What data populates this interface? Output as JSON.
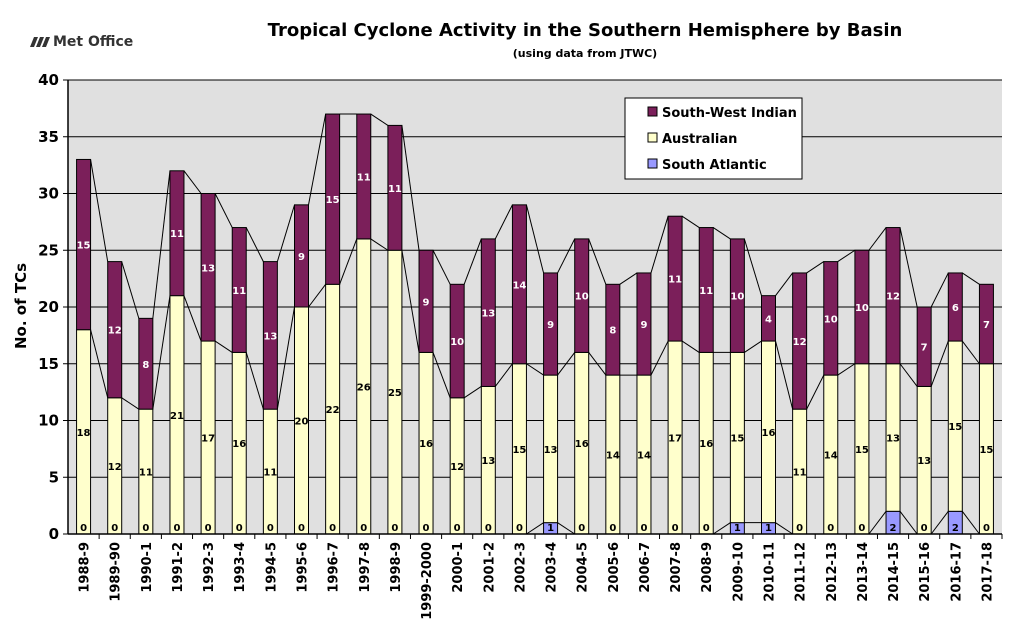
{
  "logo": {
    "text": "Met Office"
  },
  "chart_data": {
    "type": "bar",
    "stacked": true,
    "title": "Tropical Cyclone Activity in the Southern Hemisphere by Basin",
    "subtitle": "(using data from JTWC)",
    "xlabel": "",
    "ylabel": "No. of TCs",
    "ylim": [
      0,
      40
    ],
    "yticks": [
      0,
      5,
      10,
      15,
      20,
      25,
      30,
      35,
      40
    ],
    "grid": true,
    "legend_position": "top-right",
    "categories": [
      "1988-9",
      "1989-90",
      "1990-1",
      "1991-2",
      "1992-3",
      "1993-4",
      "1994-5",
      "1995-6",
      "1996-7",
      "1997-8",
      "1998-9",
      "1999-2000",
      "2000-1",
      "2001-2",
      "2002-3",
      "2003-4",
      "2004-5",
      "2005-6",
      "2006-7",
      "2007-8",
      "2008-9",
      "2009-10",
      "2010-11",
      "2011-12",
      "2012-13",
      "2013-14",
      "2014-15",
      "2015-16",
      "2016-17",
      "2017-18"
    ],
    "series": [
      {
        "name": "South Atlantic",
        "color": "#9999ff",
        "label_color": "#000000",
        "values": [
          0,
          0,
          0,
          0,
          0,
          0,
          0,
          0,
          0,
          0,
          0,
          0,
          0,
          0,
          0,
          1,
          0,
          0,
          0,
          0,
          0,
          1,
          1,
          0,
          0,
          0,
          2,
          0,
          2,
          0
        ]
      },
      {
        "name": "Australian",
        "color": "#ffffcc",
        "label_color": "#000000",
        "values": [
          18,
          12,
          11,
          21,
          17,
          16,
          11,
          20,
          22,
          26,
          25,
          16,
          12,
          13,
          15,
          13,
          16,
          14,
          14,
          17,
          16,
          15,
          16,
          11,
          14,
          15,
          13,
          13,
          15,
          15
        ]
      },
      {
        "name": "South-West Indian",
        "color": "#7b1f5a",
        "label_color": "#ffffff",
        "values": [
          15,
          12,
          8,
          11,
          13,
          11,
          13,
          9,
          15,
          11,
          11,
          9,
          10,
          13,
          14,
          9,
          10,
          8,
          9,
          11,
          11,
          10,
          4,
          12,
          10,
          10,
          12,
          7,
          6,
          7
        ]
      }
    ],
    "legend_order": [
      "South-West Indian",
      "Australian",
      "South Atlantic"
    ],
    "plot_background": "#e0e0e0"
  }
}
